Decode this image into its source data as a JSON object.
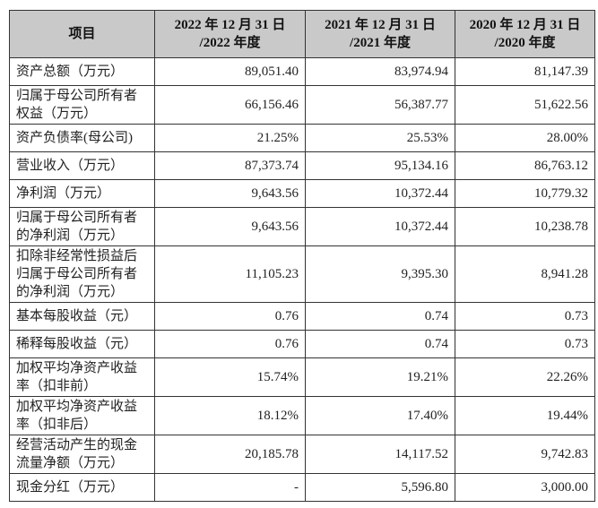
{
  "table": {
    "headers": [
      {
        "line1": "项目",
        "line2": ""
      },
      {
        "line1": "2022 年 12 月 31 日",
        "line2": "/2022 年度"
      },
      {
        "line1": "2021 年 12 月 31 日",
        "line2": "/2021 年度"
      },
      {
        "line1": "2020 年 12 月 31 日",
        "line2": "/2020 年度"
      }
    ],
    "rows": [
      {
        "label": [
          "资产总额（万元）"
        ],
        "values": [
          "89,051.40",
          "83,974.94",
          "81,147.39"
        ]
      },
      {
        "label": [
          "归属于母公司所有者",
          "权益（万元）"
        ],
        "values": [
          "66,156.46",
          "56,387.77",
          "51,622.56"
        ]
      },
      {
        "label": [
          "资产负债率(母公司)"
        ],
        "values": [
          "21.25%",
          "25.53%",
          "28.00%"
        ]
      },
      {
        "label": [
          "营业收入（万元）"
        ],
        "values": [
          "87,373.74",
          "95,134.16",
          "86,763.12"
        ]
      },
      {
        "label": [
          "净利润（万元）"
        ],
        "values": [
          "9,643.56",
          "10,372.44",
          "10,779.32"
        ]
      },
      {
        "label": [
          "归属于母公司所有者",
          "的净利润（万元）"
        ],
        "values": [
          "9,643.56",
          "10,372.44",
          "10,238.78"
        ]
      },
      {
        "label": [
          "扣除非经常性损益后",
          "归属于母公司所有者",
          "的净利润（万元）"
        ],
        "values": [
          "11,105.23",
          "9,395.30",
          "8,941.28"
        ]
      },
      {
        "label": [
          "基本每股收益（元）"
        ],
        "values": [
          "0.76",
          "0.74",
          "0.73"
        ]
      },
      {
        "label": [
          "稀释每股收益（元）"
        ],
        "values": [
          "0.76",
          "0.74",
          "0.73"
        ]
      },
      {
        "label": [
          "加权平均净资产收益",
          "率（扣非前）"
        ],
        "values": [
          "15.74%",
          "19.21%",
          "22.26%"
        ]
      },
      {
        "label": [
          "加权平均净资产收益",
          "率（扣非后）"
        ],
        "values": [
          "18.12%",
          "17.40%",
          "19.44%"
        ]
      },
      {
        "label": [
          "经营活动产生的现金",
          "流量净额（万元）"
        ],
        "values": [
          "20,185.78",
          "14,117.52",
          "9,742.83"
        ]
      },
      {
        "label": [
          "现金分红（万元）"
        ],
        "values": [
          "-",
          "5,596.80",
          "3,000.00"
        ]
      }
    ]
  },
  "colors": {
    "header_bg": "#c9c9c9",
    "border": "#333333"
  }
}
